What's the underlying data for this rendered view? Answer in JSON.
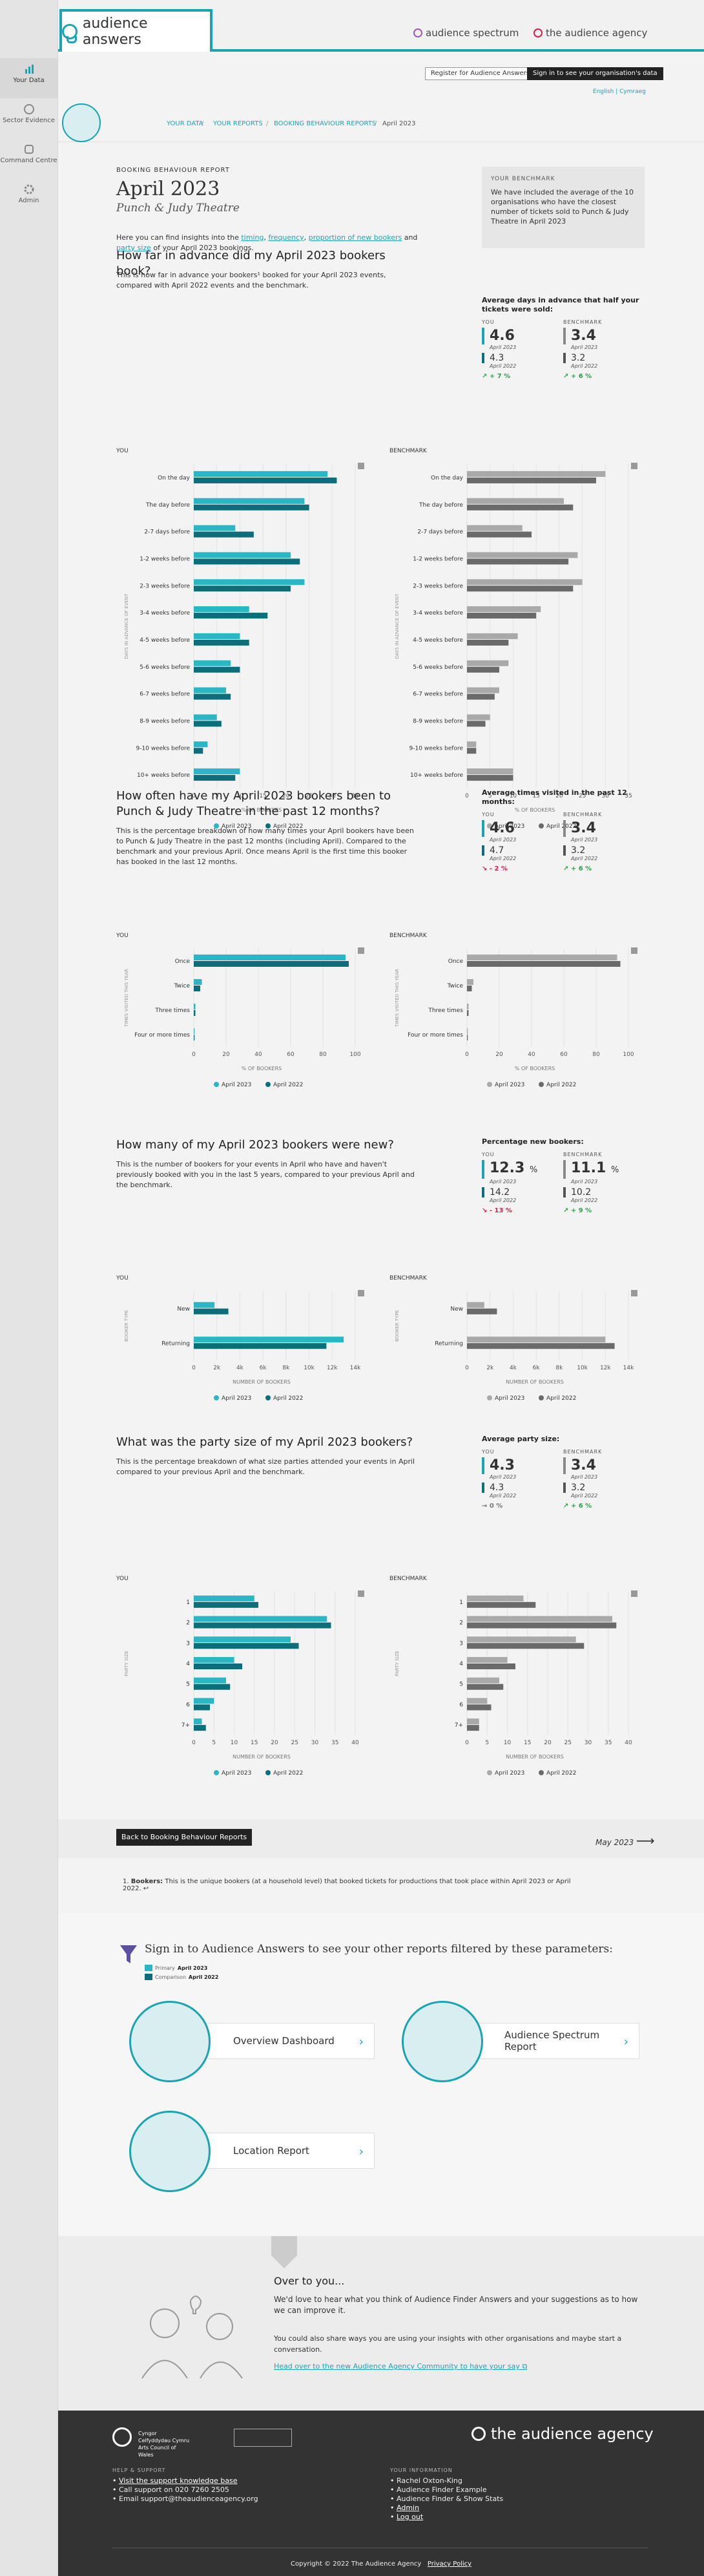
{
  "sidebar": {
    "items": [
      {
        "label": "Your Data"
      },
      {
        "label": "Sector Evidence"
      },
      {
        "label": "Command Centre"
      },
      {
        "label": "Admin"
      }
    ]
  },
  "header": {
    "product": "audience answers",
    "brand1": "audience spectrum",
    "brand2": "the audience agency",
    "register_label": "Register for Audience Answers",
    "signin_label": "Sign in to see your organisation's data",
    "lang": "English | Cymraeg"
  },
  "breadcrumb": [
    "YOUR DATA",
    "YOUR REPORTS",
    "BOOKING BEHAVIOUR REPORTS",
    "April 2023"
  ],
  "report": {
    "kicker": "BOOKING BEHAVIOUR REPORT",
    "title": "April 2023",
    "subtitle": "Punch & Judy Theatre",
    "intro_pre": "Here you can find insights into the ",
    "intro_l1": "timing",
    "intro_l2": "frequency",
    "intro_l3": "proportion of new bookers",
    "intro_and": " and ",
    "intro_l4": "party size",
    "intro_post": " of your April 2023 bookings."
  },
  "benchmark": {
    "title": "YOUR BENCHMARK",
    "body": "We have included the average of the 10 organisations who have the closest number of tickets sold to Punch & Judy Theatre in April 2023"
  },
  "colors": {
    "primary": "#2bb6c3",
    "secondary": "#0d6e7b",
    "bench_primary": "#a9a9a9",
    "bench_secondary": "#6a6a6a",
    "accent": "#1aa4b2"
  },
  "sections": [
    {
      "title": "How far in advance did my April 2023 bookers book?",
      "desc": "This is how far in advance your bookers¹ booked for your April 2023 events, compared with April 2022 events and the benchmark.",
      "stat": {
        "heading": "Average days in advance that half your tickets were sold:",
        "you_label": "YOU",
        "bench_label": "BENCHMARK",
        "you": "4.6",
        "you_period": "April 2023",
        "you_prev": "4.3",
        "you_prev_period": "April 2022",
        "you_change": "↗ + 7 %",
        "bench": "3.4",
        "bench_period": "April 2023",
        "bench_prev": "3.2",
        "bench_prev_period": "April 2022",
        "bench_change": "↗ + 6 %"
      }
    },
    {
      "title": "How often have my April 2023 bookers been to Punch & Judy Theatre in the past 12 months?",
      "desc": "This is the percentage breakdown of how many times your April bookers have been to Punch & Judy Theatre in the past 12 months (including April). Compared to the benchmark and your previous April. Once means April is the first time this booker has booked in the last 12 months.",
      "stat": {
        "heading": "Average times visited in the past 12 months:",
        "you_label": "YOU",
        "bench_label": "BENCHMARK",
        "you": "4.6",
        "you_period": "April 2023",
        "you_prev": "4.7",
        "you_prev_period": "April 2022",
        "you_change": "↘ - 2 %",
        "bench": "3.4",
        "bench_period": "April 2023",
        "bench_prev": "3.2",
        "bench_prev_period": "April 2022",
        "bench_change": "↗ + 6 %"
      }
    },
    {
      "title": "How many of my April 2023 bookers were new?",
      "desc": "This is the number of bookers for your events in April who have and haven't previously booked with you in the last 5 years, compared to your previous April and the benchmark.",
      "stat": {
        "heading": "Percentage new bookers:",
        "you_label": "YOU",
        "bench_label": "BENCHMARK",
        "you": "12.3",
        "you_period": "April 2023",
        "you_prev": "14.2",
        "you_prev_period": "April 2022",
        "you_change": "↘ - 13 %",
        "bench": "11.1",
        "bench_period": "April 2023",
        "bench_prev": "10.2",
        "bench_prev_period": "April 2022",
        "bench_change": "↗ + 9 %",
        "unit": "%"
      }
    },
    {
      "title": "What was the party size of my April 2023 bookers?",
      "desc": "This is the percentage breakdown of what size parties attended your events in April compared to your previous April and the benchmark.",
      "stat": {
        "heading": "Average party size:",
        "you_label": "YOU",
        "bench_label": "BENCHMARK",
        "you": "4.3",
        "you_period": "April 2023",
        "you_prev": "4.3",
        "you_prev_period": "April 2022",
        "you_change": "→ 0 %",
        "bench": "3.4",
        "bench_period": "April 2023",
        "bench_prev": "3.2",
        "bench_prev_period": "April 2022",
        "bench_change": "↗ + 6 %"
      }
    }
  ],
  "chart_data": [
    {
      "type": "bar",
      "title": "YOU",
      "ylabel": "DAYS IN ADVANCE OF EVENT",
      "xlabel": "% OF BOOKERS",
      "categories": [
        "On the day",
        "The day before",
        "2-7 days before",
        "1-2 weeks before",
        "2-3 weeks before",
        "3-4 weeks before",
        "4-5 weeks before",
        "5-6 weeks before",
        "6-7 weeks before",
        "8-9 weeks before",
        "9-10 weeks before",
        "10+ weeks before"
      ],
      "xlim": [
        0,
        35
      ],
      "ticks": [
        0,
        5,
        10,
        15,
        20,
        25,
        30,
        35
      ],
      "series": [
        {
          "name": "April 2023",
          "values": [
            29,
            24,
            9,
            21,
            24,
            12,
            10,
            8,
            7,
            5,
            3,
            10
          ]
        },
        {
          "name": "April 2022",
          "values": [
            31,
            25,
            13,
            23,
            21,
            16,
            12,
            10,
            8,
            6,
            2,
            9
          ]
        }
      ]
    },
    {
      "type": "bar",
      "title": "BENCHMARK",
      "ylabel": "DAYS IN ADVANCE OF EVENT",
      "xlabel": "% OF BOOKERS",
      "categories": [
        "On the day",
        "The day before",
        "2-7 days before",
        "1-2 weeks before",
        "2-3 weeks before",
        "3-4 weeks before",
        "4-5 weeks before",
        "5-6 weeks before",
        "6-7 weeks before",
        "8-9 weeks before",
        "9-10 weeks before",
        "10+ weeks before"
      ],
      "xlim": [
        0,
        35
      ],
      "ticks": [
        0,
        5,
        10,
        15,
        20,
        25,
        30,
        35
      ],
      "series": [
        {
          "name": "April 2023",
          "values": [
            30,
            21,
            12,
            24,
            25,
            16,
            11,
            9,
            7,
            5,
            2,
            10
          ]
        },
        {
          "name": "April 2022",
          "values": [
            28,
            23,
            14,
            22,
            23,
            15,
            9,
            7,
            6,
            4,
            2,
            10
          ]
        }
      ]
    },
    {
      "type": "bar",
      "title": "YOU",
      "ylabel": "TIMES VISITED THIS YEAR",
      "xlabel": "% OF BOOKERS",
      "categories": [
        "Once",
        "Twice",
        "Three times",
        "Four or more times"
      ],
      "xlim": [
        0,
        100
      ],
      "ticks": [
        0,
        20,
        40,
        60,
        80,
        100
      ],
      "series": [
        {
          "name": "April 2023",
          "values": [
            94,
            5,
            1,
            0.5
          ]
        },
        {
          "name": "April 2022",
          "values": [
            96,
            4,
            1,
            0.5
          ]
        }
      ]
    },
    {
      "type": "bar",
      "title": "BENCHMARK",
      "ylabel": "TIMES VISITED THIS YEAR",
      "xlabel": "% OF BOOKERS",
      "categories": [
        "Once",
        "Twice",
        "Three times",
        "Four or more times"
      ],
      "xlim": [
        0,
        100
      ],
      "ticks": [
        0,
        20,
        40,
        60,
        80,
        100
      ],
      "series": [
        {
          "name": "April 2023",
          "values": [
            93,
            4,
            1,
            0.5
          ]
        },
        {
          "name": "April 2022",
          "values": [
            95,
            3,
            1,
            0.5
          ]
        }
      ]
    },
    {
      "type": "bar",
      "title": "YOU",
      "ylabel": "BOOKER TYPE",
      "xlabel": "NUMBER OF BOOKERS",
      "categories": [
        "New",
        "Returning"
      ],
      "xlim": [
        0,
        14000
      ],
      "ticks": [
        0,
        2000,
        4000,
        6000,
        8000,
        10000,
        12000,
        14000
      ],
      "tick_labels": [
        "0",
        "2k",
        "4k",
        "6k",
        "8k",
        "10k",
        "12k",
        "14k"
      ],
      "series": [
        {
          "name": "April 2023",
          "values": [
            1800,
            13000
          ]
        },
        {
          "name": "April 2022",
          "values": [
            3000,
            11500
          ]
        }
      ]
    },
    {
      "type": "bar",
      "title": "BENCHMARK",
      "ylabel": "BOOKER TYPE",
      "xlabel": "NUMBER OF BOOKERS",
      "categories": [
        "New",
        "Returning"
      ],
      "xlim": [
        0,
        14000
      ],
      "ticks": [
        0,
        2000,
        4000,
        6000,
        8000,
        10000,
        12000,
        14000
      ],
      "tick_labels": [
        "0",
        "2k",
        "4k",
        "6k",
        "8k",
        "10k",
        "12k",
        "14k"
      ],
      "series": [
        {
          "name": "April 2023",
          "values": [
            1500,
            12000
          ]
        },
        {
          "name": "April 2022",
          "values": [
            2600,
            12800
          ]
        }
      ]
    },
    {
      "type": "bar",
      "title": "YOU",
      "ylabel": "PARTY SIZE",
      "xlabel": "NUMBER OF BOOKERS",
      "categories": [
        "1",
        "2",
        "3",
        "4",
        "5",
        "6",
        "7+"
      ],
      "xlim": [
        0,
        40
      ],
      "ticks": [
        0,
        5,
        10,
        15,
        20,
        25,
        30,
        35,
        40
      ],
      "series": [
        {
          "name": "April 2023",
          "values": [
            15,
            33,
            24,
            10,
            8,
            5,
            2
          ]
        },
        {
          "name": "April 2022",
          "values": [
            16,
            34,
            26,
            12,
            9,
            4,
            3
          ]
        }
      ]
    },
    {
      "type": "bar",
      "title": "BENCHMARK",
      "ylabel": "PARTY SIZE",
      "xlabel": "NUMBER OF BOOKERS",
      "categories": [
        "1",
        "2",
        "3",
        "4",
        "5",
        "6",
        "7+"
      ],
      "xlim": [
        0,
        40
      ],
      "ticks": [
        0,
        5,
        10,
        15,
        20,
        25,
        30,
        35,
        40
      ],
      "series": [
        {
          "name": "April 2023",
          "values": [
            14,
            36,
            27,
            10,
            8,
            5,
            3
          ]
        },
        {
          "name": "April 2022",
          "values": [
            17,
            37,
            29,
            12,
            9,
            6,
            3
          ]
        }
      ]
    }
  ],
  "nav": {
    "back_label": "Back to Booking Behaviour Reports",
    "next_label": "May 2023"
  },
  "footnote": {
    "num": "1.",
    "term": "Bookers:",
    "text": "This is the unique bookers (at a household level) that booked tickets for productions that took place within April 2023 or April 2022. ↩"
  },
  "signin": {
    "title": "Sign in to Audience Answers to see your other reports filtered by these parameters:",
    "primary_label": "Primary",
    "primary_value": "April 2023",
    "comparison_label": "Comparison",
    "comparison_value": "April 2022",
    "cards": [
      "Overview Dashboard",
      "Audience Spectrum Report",
      "Location Report"
    ]
  },
  "over": {
    "title": "Over to you...",
    "p1": "We'd love to hear what you think of Audience Finder Answers and your suggestions as to how we can improve it.",
    "p2": "You could also share ways you are using your insights with other organisations and maybe start a conversation.",
    "link": "Head over to the new Audience Agency Community to have your say"
  },
  "footer": {
    "funder": "Cyngor Celfyddydau Cymru Arts Council of Wales",
    "brand": "the audience agency",
    "help_title": "HELP & SUPPORT",
    "help": [
      "Visit the support knowledge base",
      "Call support on 020 7260 2505",
      "Email support@theaudienceagency.org"
    ],
    "info_title": "YOUR INFORMATION",
    "info": [
      "Rachel Oxton-King",
      "Audience Finder Example",
      "Audience Finder & Show Stats",
      "Admin",
      "Log out"
    ],
    "copyright": "Copyright © 2022 The Audience Agency",
    "privacy": "Privacy Policy"
  }
}
